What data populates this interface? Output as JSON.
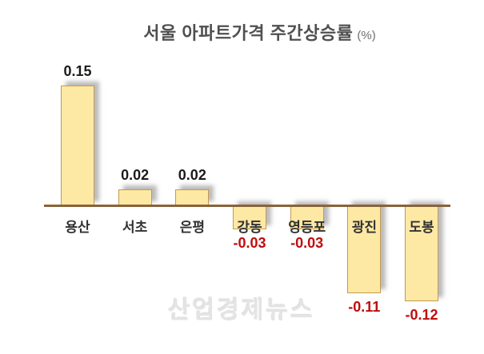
{
  "title": {
    "main": "서울 아파트가격 주간상승률",
    "unit": "(%)"
  },
  "watermark": "산업경제뉴스",
  "colors": {
    "bar_fill": "#FDE9A4",
    "bar_border": "#C49A52",
    "axis_line": "#8A6239",
    "title_text": "#4F4F4F",
    "positive_value_label": "#1B1B1B",
    "negative_value_label": "#C00D0D",
    "category_label": "#313131",
    "watermark_text": "#E4E4E4"
  },
  "chart_data": {
    "type": "bar",
    "title": "서울 아파트가격 주간상승률 (%)",
    "xlabel": "",
    "ylabel": "",
    "categories": [
      "용산",
      "서초",
      "은평",
      "강동",
      "영등포",
      "광진",
      "도봉"
    ],
    "values": [
      0.15,
      0.02,
      0.02,
      -0.03,
      -0.03,
      -0.11,
      -0.12
    ],
    "value_labels": [
      "0.15",
      "0.02",
      "0.02",
      "-0.03",
      "-0.03",
      "-0.11",
      "-0.12"
    ],
    "ylim": [
      -0.15,
      0.18
    ],
    "grid": false,
    "legend": false,
    "baseline": 0,
    "value_label_position": "outside-end"
  }
}
